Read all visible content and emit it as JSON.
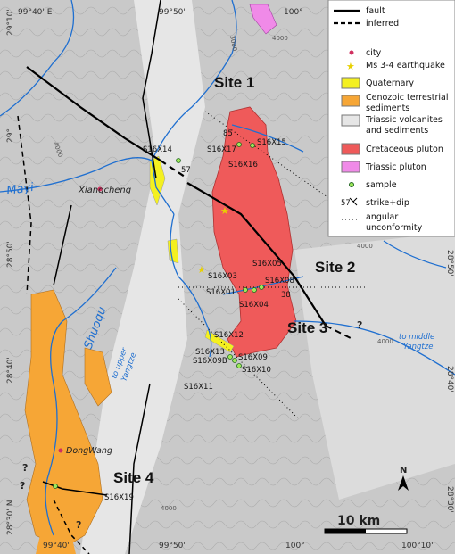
{
  "coordinates": {
    "top": [
      "99°40' E",
      "99°50'",
      "100°"
    ],
    "left": [
      "29°10'",
      "29°",
      "28°50'",
      "28°40'",
      "28°30' N"
    ],
    "right": [
      "28°50'",
      "28°40'",
      "28°30'"
    ],
    "bottom": [
      "99°40'",
      "99°50'",
      "100°",
      "100°10'"
    ]
  },
  "legend": [
    [
      "fault"
    ],
    [
      "inferred"
    ],
    [
      "city"
    ],
    [
      "Ms 3-4 earthquake"
    ],
    [
      "Quaternary"
    ],
    [
      "Cenozoic terrestrial",
      "sediments"
    ],
    [
      "Triassic volcanites",
      "and sediments"
    ],
    [
      "Cretaceous pluton"
    ],
    [
      "Triassic pluton"
    ],
    [
      "sample"
    ],
    [
      "strike+dip"
    ],
    [
      "angular",
      "unconformity"
    ]
  ],
  "legend_dip": "57",
  "sites": [
    "Site 1",
    "Site 2",
    "Site 3",
    "Site 4"
  ],
  "places": {
    "city1": "Xiangcheng",
    "city2": "DongWang",
    "river1": "Mayi",
    "river2": "Shuoqu",
    "upper": [
      "to upper",
      "Yangtze"
    ],
    "middle": [
      "to middle",
      "Yangtze"
    ]
  },
  "samples": [
    "S16X14",
    "S16X17",
    "S16X15",
    "S16X16",
    "S16X05",
    "S16X03",
    "S16X08",
    "S16X01",
    "S16X04",
    "S16X12",
    "S16X13",
    "S16X09B",
    "S16X09",
    "S16X10",
    "S16X11",
    "S16X19"
  ],
  "dips": [
    "85",
    "57",
    "38"
  ],
  "contours": [
    "3000",
    "4000",
    "4000",
    "4000",
    "4000",
    "4000"
  ],
  "uncertain": [
    "?",
    "?",
    "?",
    "?"
  ],
  "scale": "10 km",
  "north": "N"
}
